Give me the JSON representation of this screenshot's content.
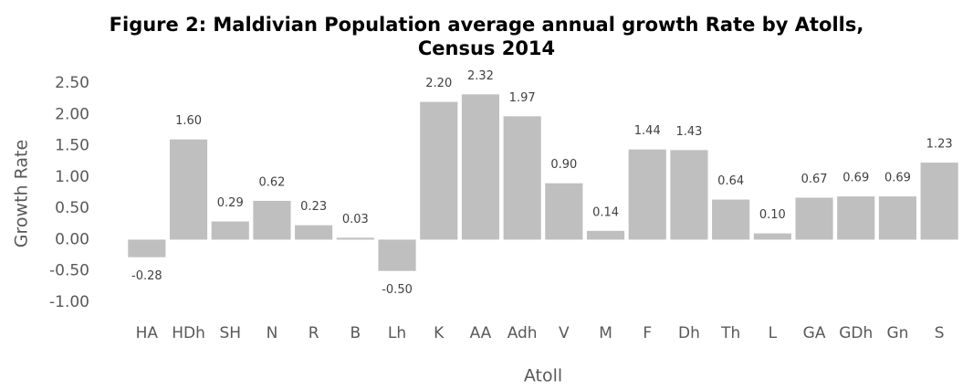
{
  "chart_data": {
    "type": "bar",
    "title": "Figure 2: Maldivian Population average annual growth Rate by Atolls, Census 2014",
    "x_label": "Atoll",
    "y_label": "Growth Rate",
    "categories": [
      "HA",
      "HDh",
      "SH",
      "N",
      "R",
      "B",
      "Lh",
      "K",
      "AA",
      "Adh",
      "V",
      "M",
      "F",
      "Dh",
      "Th",
      "L",
      "GA",
      "GDh",
      "Gn",
      "S"
    ],
    "values": [
      -0.28,
      1.6,
      0.29,
      0.62,
      0.23,
      0.03,
      -0.5,
      2.2,
      2.32,
      1.97,
      0.9,
      0.14,
      1.44,
      1.43,
      0.64,
      0.1,
      0.67,
      0.69,
      0.69,
      1.23
    ],
    "value_labels": [
      "-0.28",
      "1.60",
      "0.29",
      "0.62",
      "0.23",
      "0.03",
      "-0.50",
      "2.20",
      "2.32",
      "1.97",
      "0.90",
      "0.14",
      "1.44",
      "1.43",
      "0.64",
      "0.10",
      "0.67",
      "0.69",
      "0.69",
      "1.23"
    ],
    "color": "#bfbfbf",
    "ylim": [
      -1,
      2.5
    ],
    "yticks": [
      {
        "value": -1,
        "label": "-1.00"
      },
      {
        "value": -0.5,
        "label": "-0.50"
      },
      {
        "value": 0,
        "label": "0.00"
      },
      {
        "value": 0.5,
        "label": "0.50"
      },
      {
        "value": 1,
        "label": "1.00"
      },
      {
        "value": 1.5,
        "label": "1.50"
      },
      {
        "value": 2,
        "label": "2.00"
      },
      {
        "value": 2.5,
        "label": "2.50"
      }
    ],
    "grid": false
  }
}
